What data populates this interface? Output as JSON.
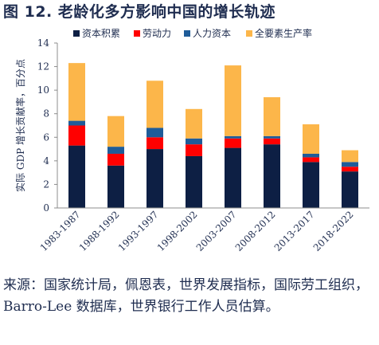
{
  "title": "图 12. 老龄化多方影响中国的增长轨迹",
  "source": "来源：国家统计局，佩恩表，世界发展指标，国际劳工组织，Barro-Lee 数据库，世界银行工作人员估算。",
  "chart_data": {
    "type": "bar",
    "stacked": true,
    "categories": [
      "1983-1987",
      "1988-1992",
      "1993-1997",
      "1998-2002",
      "2003-2007",
      "2008-2012",
      "2013-2017",
      "2018-2022"
    ],
    "ylabel": "实际 GDP 增长贡献率，百分点",
    "ylim": [
      0,
      14
    ],
    "yticks": [
      0,
      2,
      4,
      6,
      8,
      10,
      12,
      14
    ],
    "grid": false,
    "legend_position": "top",
    "series": [
      {
        "name": "资本积累",
        "color": "#0d1f44",
        "values": [
          5.3,
          3.6,
          5.0,
          4.4,
          5.1,
          5.4,
          3.9,
          3.1
        ]
      },
      {
        "name": "劳动力",
        "color": "#ff0000",
        "values": [
          1.7,
          1.0,
          1.0,
          1.0,
          0.8,
          0.5,
          0.4,
          0.4
        ]
      },
      {
        "name": "人力资本",
        "color": "#1f5c99",
        "values": [
          0.4,
          0.6,
          0.8,
          0.5,
          0.2,
          0.2,
          0.3,
          0.4
        ]
      },
      {
        "name": "全要素生产率",
        "color": "#fcb64a",
        "values": [
          4.9,
          2.6,
          4.0,
          2.5,
          6.0,
          3.3,
          2.5,
          1.0
        ]
      }
    ]
  }
}
